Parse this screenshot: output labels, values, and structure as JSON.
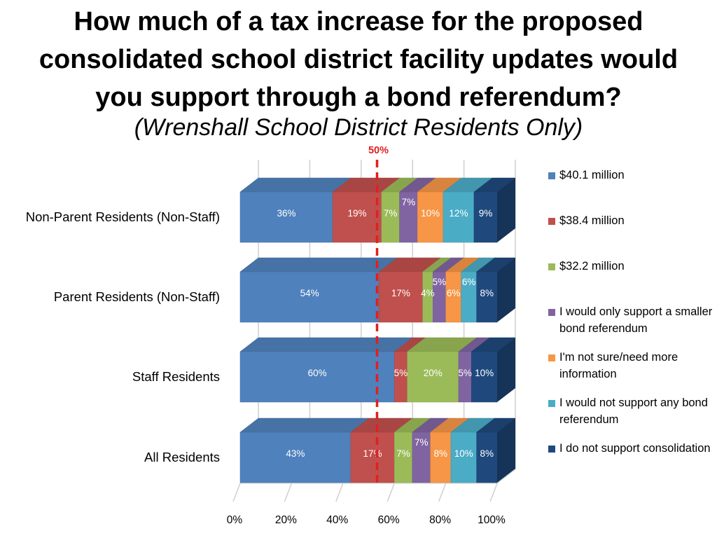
{
  "title_lines": [
    "How much of a tax increase for the proposed",
    "consolidated school district facility updates would",
    "you support through a bond referendum?"
  ],
  "subtitle": "(Wrenshall School District Residents Only)",
  "colors": {
    "accent_line": "#e02020"
  },
  "chart_data": {
    "type": "bar",
    "orientation": "horizontal",
    "stacked": "percent",
    "three_d": true,
    "categories": [
      "Non-Parent Residents (Non-Staff)",
      "Parent Residents (Non-Staff)",
      "Staff Residents",
      "All Residents"
    ],
    "series": [
      {
        "name": "$40.1 million",
        "color": "#4f81bd",
        "values": [
          36,
          54,
          60,
          43
        ]
      },
      {
        "name": "$38.4 million",
        "color": "#c0504d",
        "values": [
          19,
          17,
          5,
          17
        ]
      },
      {
        "name": "$32.2 million",
        "color": "#9bbb59",
        "values": [
          7,
          4,
          20,
          7
        ]
      },
      {
        "name": "I would only support a smaller bond referendum",
        "color": "#8064a2",
        "values": [
          7,
          5,
          5,
          7
        ]
      },
      {
        "name": "I'm not sure/need more information",
        "color": "#f79646",
        "values": [
          10,
          6,
          0,
          8
        ]
      },
      {
        "name": "I would not support any bond referendum",
        "color": "#4bacc6",
        "values": [
          12,
          6,
          0,
          10
        ]
      },
      {
        "name": "I do not support consolidation",
        "color": "#1f497d",
        "values": [
          9,
          8,
          10,
          8
        ]
      }
    ],
    "x_ticks": [
      "0%",
      "20%",
      "40%",
      "60%",
      "80%",
      "100%"
    ],
    "xlim": [
      0,
      100
    ],
    "reference_line": {
      "label": "50%",
      "value": 50
    },
    "legend_position": "right",
    "grid": true
  }
}
